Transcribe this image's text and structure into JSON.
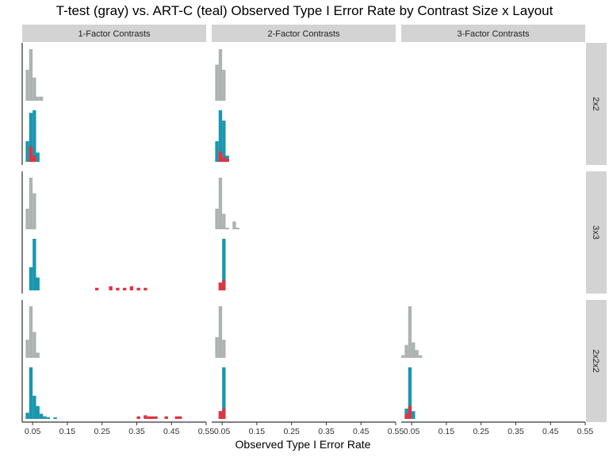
{
  "chart_data": {
    "type": "bar",
    "title": "T-test (gray) vs. ART-C (teal) Observed Type I Error Rate by Contrast Size x Layout",
    "xlabel": "Observed Type I Error Rate",
    "ylabel": "",
    "xlim": [
      0.02,
      0.55
    ],
    "xticks": [
      "0.05",
      "0.15",
      "0.25",
      "0.35",
      "0.45",
      "0.55"
    ],
    "xtick_values": [
      0.05,
      0.15,
      0.25,
      0.35,
      0.45,
      0.55
    ],
    "bin_width": 0.01,
    "columns": [
      "1-Factor Contrasts",
      "2-Factor Contrasts",
      "3-Factor Contrasts"
    ],
    "rows": [
      "2x2",
      "3x3",
      "2x2x2"
    ],
    "colors": {
      "ttest": "#adb3b1",
      "artc": "#1a96b0",
      "highlight": "#e03342",
      "strip": "#d3d3d3"
    },
    "series_labels": {
      "ttest": "T-test (gray)",
      "artc": "ART-C (teal)"
    },
    "panels": [
      {
        "row": 0,
        "col": 0,
        "gray": [
          [
            0.03,
            0.6
          ],
          [
            0.04,
            1.0
          ],
          [
            0.05,
            0.45
          ],
          [
            0.06,
            0.08
          ],
          [
            0.07,
            0.08
          ]
        ],
        "teal": [
          [
            0.03,
            0.4
          ],
          [
            0.04,
            0.95
          ],
          [
            0.05,
            1.0
          ],
          [
            0.06,
            0.18
          ]
        ],
        "red": [
          [
            0.04,
            0.3
          ],
          [
            0.05,
            0.12
          ]
        ]
      },
      {
        "row": 0,
        "col": 1,
        "gray": [
          [
            0.03,
            0.7
          ],
          [
            0.04,
            1.0
          ],
          [
            0.05,
            0.6
          ]
        ],
        "teal": [
          [
            0.03,
            0.4
          ],
          [
            0.04,
            1.0
          ],
          [
            0.05,
            0.8
          ],
          [
            0.06,
            0.12
          ]
        ],
        "red": [
          [
            0.04,
            0.2
          ],
          [
            0.05,
            0.1
          ],
          [
            0.06,
            0.06
          ]
        ]
      },
      {
        "row": 0,
        "col": 2,
        "gray": [],
        "teal": [],
        "red": []
      },
      {
        "row": 1,
        "col": 0,
        "gray": [
          [
            0.03,
            0.4
          ],
          [
            0.04,
            1.0
          ],
          [
            0.05,
            0.7
          ]
        ],
        "teal": [
          [
            0.04,
            0.45
          ],
          [
            0.05,
            1.0
          ],
          [
            0.06,
            0.25
          ]
        ],
        "red": [
          [
            0.23,
            0.05
          ],
          [
            0.27,
            0.08
          ],
          [
            0.29,
            0.05
          ],
          [
            0.31,
            0.05
          ],
          [
            0.33,
            0.08
          ],
          [
            0.35,
            0.05
          ],
          [
            0.37,
            0.05
          ]
        ]
      },
      {
        "row": 1,
        "col": 1,
        "gray": [
          [
            0.03,
            0.4
          ],
          [
            0.04,
            1.0
          ],
          [
            0.05,
            0.3
          ],
          [
            0.06,
            0.02
          ],
          [
            0.08,
            0.15
          ],
          [
            0.09,
            0.02
          ]
        ],
        "teal": [
          [
            0.04,
            0.15
          ],
          [
            0.05,
            1.0
          ]
        ],
        "red": [
          [
            0.04,
            0.15
          ],
          [
            0.05,
            0.2
          ]
        ]
      },
      {
        "row": 1,
        "col": 2,
        "gray": [],
        "teal": [],
        "red": []
      },
      {
        "row": 2,
        "col": 0,
        "gray": [
          [
            0.03,
            0.35
          ],
          [
            0.04,
            1.0
          ],
          [
            0.05,
            0.5
          ],
          [
            0.06,
            0.1
          ]
        ],
        "teal": [
          [
            0.03,
            0.12
          ],
          [
            0.04,
            1.0
          ],
          [
            0.05,
            0.45
          ],
          [
            0.06,
            0.25
          ],
          [
            0.07,
            0.1
          ],
          [
            0.08,
            0.05
          ],
          [
            0.09,
            0.03
          ],
          [
            0.11,
            0.02
          ]
        ],
        "red": [
          [
            0.35,
            0.05
          ],
          [
            0.37,
            0.07
          ],
          [
            0.38,
            0.05
          ],
          [
            0.39,
            0.05
          ],
          [
            0.4,
            0.05
          ],
          [
            0.43,
            0.05
          ],
          [
            0.46,
            0.05
          ],
          [
            0.47,
            0.05
          ]
        ]
      },
      {
        "row": 2,
        "col": 1,
        "gray": [
          [
            0.03,
            0.4
          ],
          [
            0.04,
            1.0
          ],
          [
            0.05,
            0.35
          ]
        ],
        "teal": [
          [
            0.04,
            0.15
          ],
          [
            0.05,
            1.0
          ]
        ],
        "red": [
          [
            0.04,
            0.15
          ],
          [
            0.05,
            0.2
          ]
        ]
      },
      {
        "row": 2,
        "col": 2,
        "gray": [
          [
            0.02,
            0.05
          ],
          [
            0.03,
            0.25
          ],
          [
            0.04,
            1.0
          ],
          [
            0.05,
            0.3
          ],
          [
            0.06,
            0.15
          ],
          [
            0.07,
            0.05
          ]
        ],
        "teal": [
          [
            0.03,
            0.2
          ],
          [
            0.04,
            1.0
          ],
          [
            0.05,
            0.15
          ]
        ],
        "red": [
          [
            0.03,
            0.1
          ],
          [
            0.04,
            0.25
          ]
        ]
      }
    ]
  }
}
